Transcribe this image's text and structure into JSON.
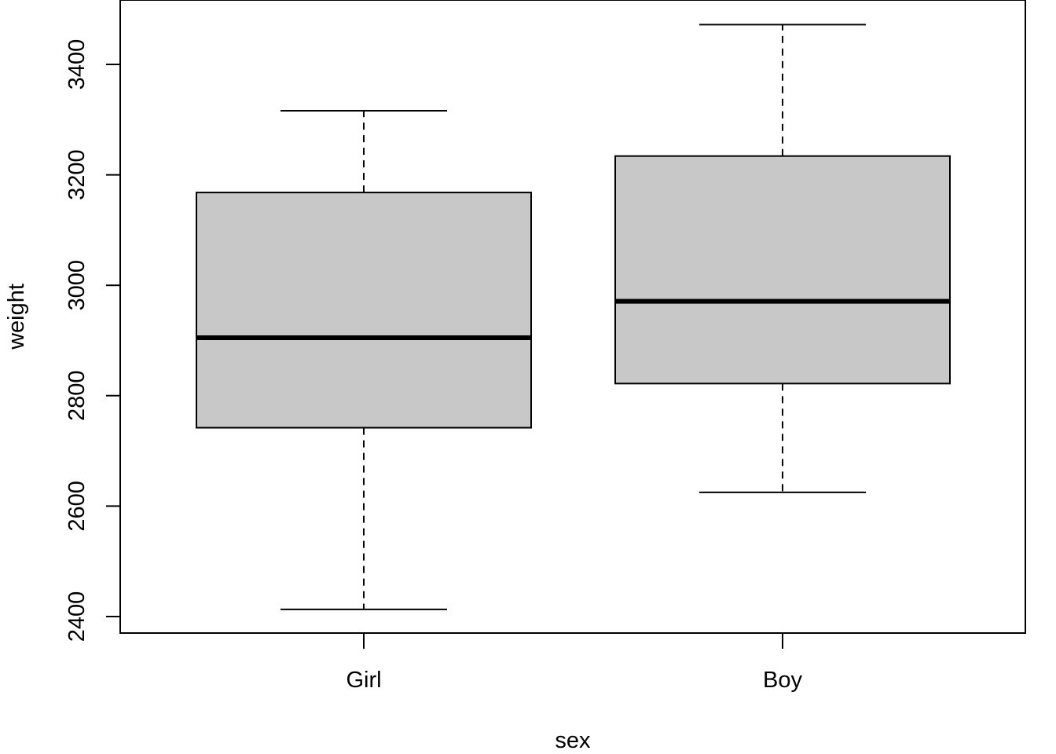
{
  "chart_data": {
    "type": "boxplot",
    "title": "",
    "xlabel": "sex",
    "ylabel": "weight",
    "ylim": [
      2370,
      3485
    ],
    "y_ticks": [
      2400,
      2600,
      2800,
      3000,
      3200,
      3400
    ],
    "categories": [
      "Girl",
      "Boy"
    ],
    "boxes": [
      {
        "category": "Girl",
        "whisker_low": 2413,
        "q1": 2742,
        "median": 2905,
        "q3": 3168,
        "whisker_high": 3316
      },
      {
        "category": "Boy",
        "whisker_low": 2625,
        "q1": 2822,
        "median": 2971,
        "q3": 3234,
        "whisker_high": 3472
      }
    ],
    "grid": false,
    "box_fill": "#c8c8c8",
    "line_color": "#000000"
  }
}
